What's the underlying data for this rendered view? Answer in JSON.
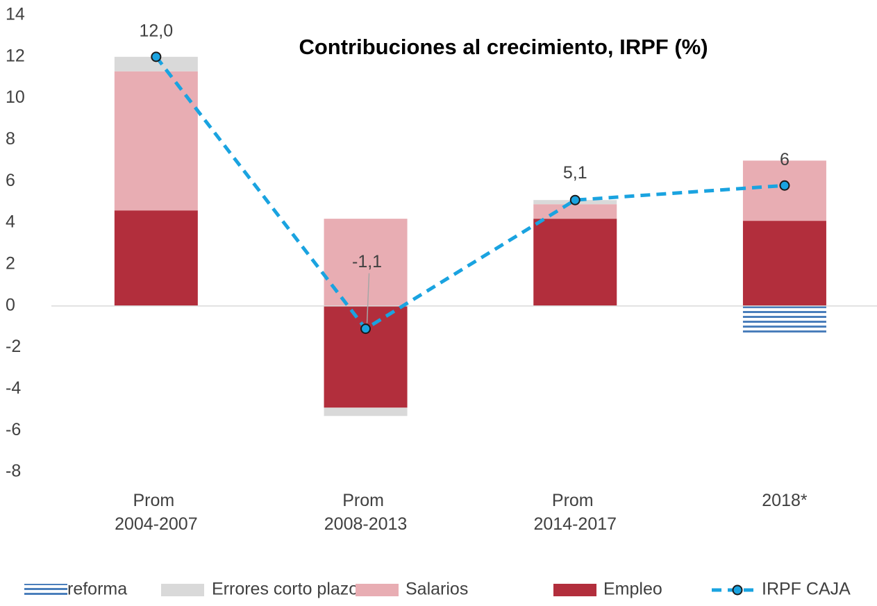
{
  "chart_data": {
    "type": "stacked_bar_line",
    "title": "Contribuciones al crecimiento, IRPF (%)",
    "categories": [
      "Prom 2004-2007",
      "Prom 2008-2013",
      "Prom 2014-2017",
      "2018*"
    ],
    "series": [
      {
        "name": "reforma",
        "color": "#4a7ebb",
        "kind": "bar",
        "pattern": "horizontal-stripes",
        "values": [
          null,
          null,
          null,
          -1.3
        ]
      },
      {
        "name": "Errores corto plazo",
        "color": "#d9d9d9",
        "kind": "bar",
        "values": [
          0.7,
          -0.4,
          0.2,
          null
        ]
      },
      {
        "name": "Salarios",
        "color": "#e8adb3",
        "kind": "bar",
        "values": [
          6.7,
          4.2,
          0.7,
          2.9
        ]
      },
      {
        "name": "Empleo",
        "color": "#b22e3c",
        "kind": "bar",
        "values": [
          4.6,
          -4.9,
          4.2,
          4.1
        ]
      },
      {
        "name": "IRPF CAJA",
        "color": "#1aa3e0",
        "kind": "line",
        "values": [
          12.0,
          -1.1,
          5.1,
          5.8
        ],
        "value_labels": [
          "12,0",
          "-1,1",
          "5,1",
          "6"
        ]
      }
    ],
    "ylim": [
      -8,
      14
    ],
    "yticks": [
      -8,
      -6,
      -4,
      -2,
      0,
      2,
      4,
      6,
      8,
      10,
      12,
      14
    ],
    "grid": false,
    "legend": "bottom"
  }
}
